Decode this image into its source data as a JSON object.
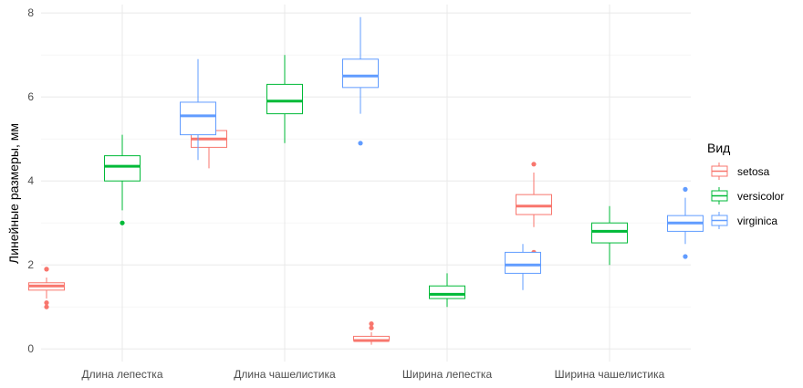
{
  "chart_data": {
    "type": "boxplot",
    "title": "",
    "xlabel": "",
    "ylabel": "Линейные размеры, мм",
    "ylim": [
      -0.3,
      8.2
    ],
    "y_ticks": [
      0,
      2,
      4,
      6,
      8
    ],
    "categories": [
      "Длина лепестка",
      "Длина чашелистика",
      "Ширина лепестка",
      "Ширина чашелистика"
    ],
    "grid": true,
    "legend": {
      "title": "Вид",
      "position": "right",
      "entries": [
        "setosa",
        "versicolor",
        "virginica"
      ]
    },
    "series": [
      {
        "name": "setosa",
        "color": "#F8766D",
        "boxes": [
          {
            "category": "Длина лепестка",
            "whisker_low": 1.2,
            "q1": 1.4,
            "median": 1.5,
            "q3": 1.575,
            "whisker_high": 1.7,
            "outliers": [
              1.0,
              1.1,
              1.9,
              1.9
            ]
          },
          {
            "category": "Длина чашелистика",
            "whisker_low": 4.3,
            "q1": 4.8,
            "median": 5.0,
            "q3": 5.2,
            "whisker_high": 5.8,
            "outliers": []
          },
          {
            "category": "Ширина лепестка",
            "whisker_low": 0.1,
            "q1": 0.2,
            "median": 0.2,
            "q3": 0.3,
            "whisker_high": 0.4,
            "outliers": [
              0.5,
              0.6
            ]
          },
          {
            "category": "Ширина чашелистика",
            "whisker_low": 2.9,
            "q1": 3.2,
            "median": 3.4,
            "q3": 3.675,
            "whisker_high": 4.2,
            "outliers": [
              2.3,
              4.4
            ]
          }
        ]
      },
      {
        "name": "versicolor",
        "color": "#00BA38",
        "boxes": [
          {
            "category": "Длина лепестка",
            "whisker_low": 3.3,
            "q1": 4.0,
            "median": 4.35,
            "q3": 4.6,
            "whisker_high": 5.1,
            "outliers": [
              3.0
            ]
          },
          {
            "category": "Длина чашелистика",
            "whisker_low": 4.9,
            "q1": 5.6,
            "median": 5.9,
            "q3": 6.3,
            "whisker_high": 7.0,
            "outliers": []
          },
          {
            "category": "Ширина лепестка",
            "whisker_low": 1.0,
            "q1": 1.2,
            "median": 1.3,
            "q3": 1.5,
            "whisker_high": 1.8,
            "outliers": []
          },
          {
            "category": "Ширина чашелистика",
            "whisker_low": 2.0,
            "q1": 2.525,
            "median": 2.8,
            "q3": 3.0,
            "whisker_high": 3.4,
            "outliers": []
          }
        ]
      },
      {
        "name": "virginica",
        "color": "#619CFF",
        "boxes": [
          {
            "category": "Длина лепестка",
            "whisker_low": 4.5,
            "q1": 5.1,
            "median": 5.55,
            "q3": 5.875,
            "whisker_high": 6.9,
            "outliers": []
          },
          {
            "category": "Длина чашелистика",
            "whisker_low": 5.6,
            "q1": 6.225,
            "median": 6.5,
            "q3": 6.9,
            "whisker_high": 7.9,
            "outliers": [
              4.9
            ]
          },
          {
            "category": "Ширина лепестка",
            "whisker_low": 1.4,
            "q1": 1.8,
            "median": 2.0,
            "q3": 2.3,
            "whisker_high": 2.5,
            "outliers": []
          },
          {
            "category": "Ширина чашелистика",
            "whisker_low": 2.5,
            "q1": 2.8,
            "median": 3.0,
            "q3": 3.175,
            "whisker_high": 3.6,
            "outliers": [
              2.2,
              3.8
            ]
          }
        ]
      }
    ]
  }
}
